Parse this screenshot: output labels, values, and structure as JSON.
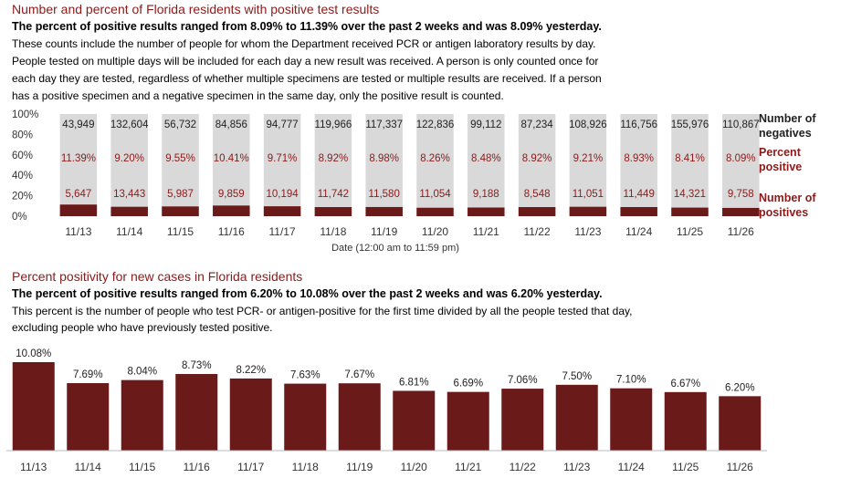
{
  "section1": {
    "title": "Number and percent of Florida residents with positive test results",
    "subtitle": "The percent of positive results ranged from 8.09% to 11.39% over the past 2 weeks and was 8.09% yesterday.",
    "description_lines": [
      "These counts include the number of people for whom the Department received PCR or antigen laboratory results by day.",
      "People tested on multiple days will be included for each day a new result was received. A person is only counted once for",
      "each day they are tested, regardless of whether multiple specimens are tested or multiple results are received. If a person",
      "has a positive specimen and a negative specimen in the same day, only the positive result is counted."
    ]
  },
  "section2": {
    "title": "Percent positivity for new cases in Florida residents",
    "subtitle": "The percent of positive results ranged from 6.20% to 10.08% over the past 2 weeks and was 6.20% yesterday.",
    "description_lines": [
      "This percent is the number of people who test PCR- or antigen-positive for the first time divided by all the people tested that day,",
      "excluding people who have previously tested positive."
    ]
  },
  "colors": {
    "positive": "#6b1a1a",
    "negative": "#d9d9d9",
    "title_red": "#8b1a1a",
    "bar2": "#6b1a1a"
  },
  "chart_data": [
    {
      "type": "bar",
      "stacked": true,
      "normalized_percent": true,
      "xlabel": "Date (12:00 am to 11:59 pm)",
      "ylabel": "",
      "ylim": [
        0,
        100
      ],
      "y_ticks": [
        "0%",
        "20%",
        "40%",
        "60%",
        "80%",
        "100%"
      ],
      "categories": [
        "11/13",
        "11/14",
        "11/15",
        "11/16",
        "11/17",
        "11/18",
        "11/19",
        "11/20",
        "11/21",
        "11/22",
        "11/23",
        "11/24",
        "11/25",
        "11/26"
      ],
      "row_labels": {
        "negatives": [
          "Number of",
          "negatives"
        ],
        "percent": [
          "Percent",
          "positive"
        ],
        "positives": [
          "Number of",
          "positives"
        ]
      },
      "negatives": [
        "43,949",
        "132,604",
        "56,732",
        "84,856",
        "94,777",
        "119,966",
        "117,337",
        "122,836",
        "99,112",
        "87,234",
        "108,926",
        "116,756",
        "155,976",
        "110,867"
      ],
      "percent_positive": [
        "11.39%",
        "9.20%",
        "9.55%",
        "10.41%",
        "9.71%",
        "8.92%",
        "8.98%",
        "8.26%",
        "8.48%",
        "8.92%",
        "9.21%",
        "8.93%",
        "8.41%",
        "8.09%"
      ],
      "percent_values": [
        11.39,
        9.2,
        9.55,
        10.41,
        9.71,
        8.92,
        8.98,
        8.26,
        8.48,
        8.92,
        9.21,
        8.93,
        8.41,
        8.09
      ],
      "positives": [
        "5,647",
        "13,443",
        "5,987",
        "9,859",
        "10,194",
        "11,742",
        "11,580",
        "11,054",
        "9,188",
        "8,548",
        "11,051",
        "11,449",
        "14,321",
        "9,758"
      ],
      "grid": false,
      "legend": "right"
    },
    {
      "type": "bar",
      "categories": [
        "11/13",
        "11/14",
        "11/15",
        "11/16",
        "11/17",
        "11/18",
        "11/19",
        "11/20",
        "11/21",
        "11/22",
        "11/23",
        "11/24",
        "11/25",
        "11/26"
      ],
      "values": [
        10.08,
        7.69,
        8.04,
        8.73,
        8.22,
        7.63,
        7.67,
        6.81,
        6.69,
        7.06,
        7.5,
        7.1,
        6.67,
        6.2
      ],
      "value_labels": [
        "10.08%",
        "7.69%",
        "8.04%",
        "8.73%",
        "8.22%",
        "7.63%",
        "7.67%",
        "6.81%",
        "6.69%",
        "7.06%",
        "7.50%",
        "7.10%",
        "6.67%",
        "6.20%"
      ],
      "xlabel": "",
      "ylabel": "",
      "ylim": [
        0,
        10.08
      ],
      "grid": false
    }
  ]
}
